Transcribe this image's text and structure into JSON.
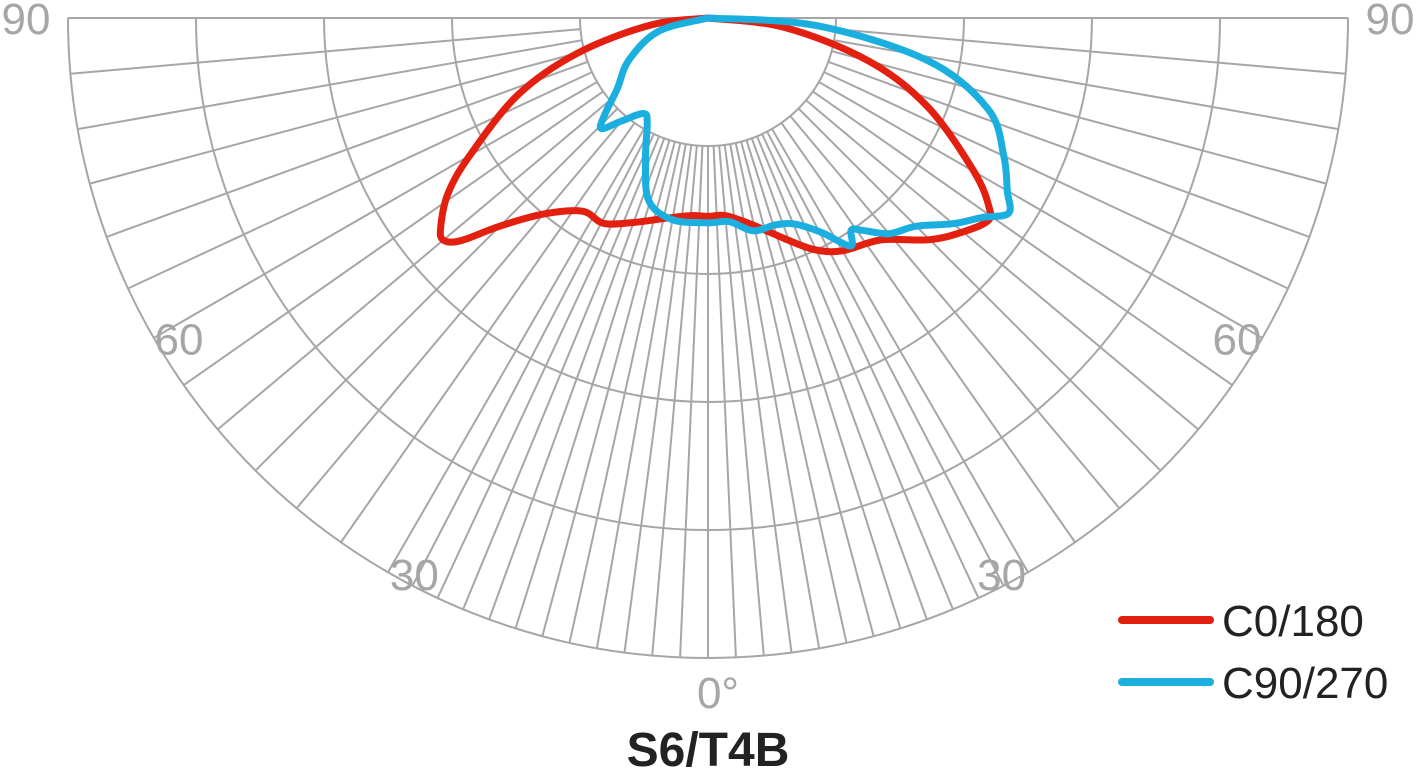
{
  "chart_data": {
    "type": "polar",
    "title": "S6/T4B",
    "angle_labels": [
      {
        "side": "left",
        "angle": 90,
        "text": "90"
      },
      {
        "side": "right",
        "angle": 90,
        "text": "90"
      },
      {
        "side": "left",
        "angle": 60,
        "text": "60"
      },
      {
        "side": "right",
        "angle": 60,
        "text": "60"
      },
      {
        "side": "left",
        "angle": 30,
        "text": "30"
      },
      {
        "side": "right",
        "angle": 30,
        "text": "30"
      },
      {
        "side": "center",
        "angle": 0,
        "text": "0°"
      }
    ],
    "grid": {
      "ring_count": 5,
      "spoke_step_deg": 5,
      "inner_spoke_step_deg": 2.5,
      "inner_spoke_range_deg": [
        -30,
        30
      ],
      "inner_spoke_start_ring": 1
    },
    "legend": {
      "position": "bottom-right",
      "entries": [
        {
          "name": "C0/180",
          "color": "#e3200f"
        },
        {
          "name": "C90/270",
          "color": "#1bafe0"
        }
      ]
    },
    "series": [
      {
        "name": "C0/180",
        "color": "#e3200f",
        "unit": "relative intensity (fraction of outer ring)",
        "points": [
          {
            "angle": -90,
            "r": 0.0
          },
          {
            "angle": -83,
            "r": 0.09
          },
          {
            "angle": -75,
            "r": 0.21
          },
          {
            "angle": -68,
            "r": 0.32
          },
          {
            "angle": -60,
            "r": 0.43
          },
          {
            "angle": -56,
            "r": 0.49
          },
          {
            "angle": -52,
            "r": 0.53
          },
          {
            "angle": -50,
            "r": 0.54
          },
          {
            "angle": -48,
            "r": 0.52
          },
          {
            "angle": -45,
            "r": 0.46
          },
          {
            "angle": -40,
            "r": 0.4
          },
          {
            "angle": -33,
            "r": 0.36
          },
          {
            "angle": -27,
            "r": 0.36
          },
          {
            "angle": -20,
            "r": 0.34
          },
          {
            "angle": -12,
            "r": 0.32
          },
          {
            "angle": -5,
            "r": 0.31
          },
          {
            "angle": 0,
            "r": 0.31
          },
          {
            "angle": 5,
            "r": 0.31
          },
          {
            "angle": 12,
            "r": 0.33
          },
          {
            "angle": 20,
            "r": 0.37
          },
          {
            "angle": 25,
            "r": 0.4
          },
          {
            "angle": 30,
            "r": 0.42
          },
          {
            "angle": 38,
            "r": 0.44
          },
          {
            "angle": 45,
            "r": 0.49
          },
          {
            "angle": 50,
            "r": 0.52
          },
          {
            "angle": 54,
            "r": 0.54
          },
          {
            "angle": 56,
            "r": 0.53
          },
          {
            "angle": 60,
            "r": 0.48
          },
          {
            "angle": 68,
            "r": 0.37
          },
          {
            "angle": 75,
            "r": 0.26
          },
          {
            "angle": 83,
            "r": 0.12
          },
          {
            "angle": 90,
            "r": 0.0
          }
        ]
      },
      {
        "name": "C90/270",
        "color": "#1bafe0",
        "unit": "relative intensity (fraction of outer ring)",
        "points": [
          {
            "angle": -90,
            "r": 0.0
          },
          {
            "angle": -75,
            "r": 0.08
          },
          {
            "angle": -62,
            "r": 0.14
          },
          {
            "angle": -52,
            "r": 0.18
          },
          {
            "angle": -47,
            "r": 0.22
          },
          {
            "angle": -44,
            "r": 0.24
          },
          {
            "angle": -40,
            "r": 0.21
          },
          {
            "angle": -34,
            "r": 0.18
          },
          {
            "angle": -30,
            "r": 0.19
          },
          {
            "angle": -24,
            "r": 0.24
          },
          {
            "angle": -18,
            "r": 0.3
          },
          {
            "angle": -10,
            "r": 0.32
          },
          {
            "angle": 0,
            "r": 0.32
          },
          {
            "angle": 6,
            "r": 0.32
          },
          {
            "angle": 12,
            "r": 0.34
          },
          {
            "angle": 18,
            "r": 0.34
          },
          {
            "angle": 23,
            "r": 0.35
          },
          {
            "angle": 28,
            "r": 0.38
          },
          {
            "angle": 32,
            "r": 0.42
          },
          {
            "angle": 34,
            "r": 0.4
          },
          {
            "angle": 36,
            "r": 0.41
          },
          {
            "angle": 40,
            "r": 0.44
          },
          {
            "angle": 45,
            "r": 0.46
          },
          {
            "angle": 50,
            "r": 0.5
          },
          {
            "angle": 54,
            "r": 0.53
          },
          {
            "angle": 57,
            "r": 0.56
          },
          {
            "angle": 60,
            "r": 0.54
          },
          {
            "angle": 65,
            "r": 0.51
          },
          {
            "angle": 72,
            "r": 0.46
          },
          {
            "angle": 79,
            "r": 0.35
          },
          {
            "angle": 86,
            "r": 0.17
          },
          {
            "angle": 90,
            "r": 0.0
          }
        ]
      }
    ]
  }
}
